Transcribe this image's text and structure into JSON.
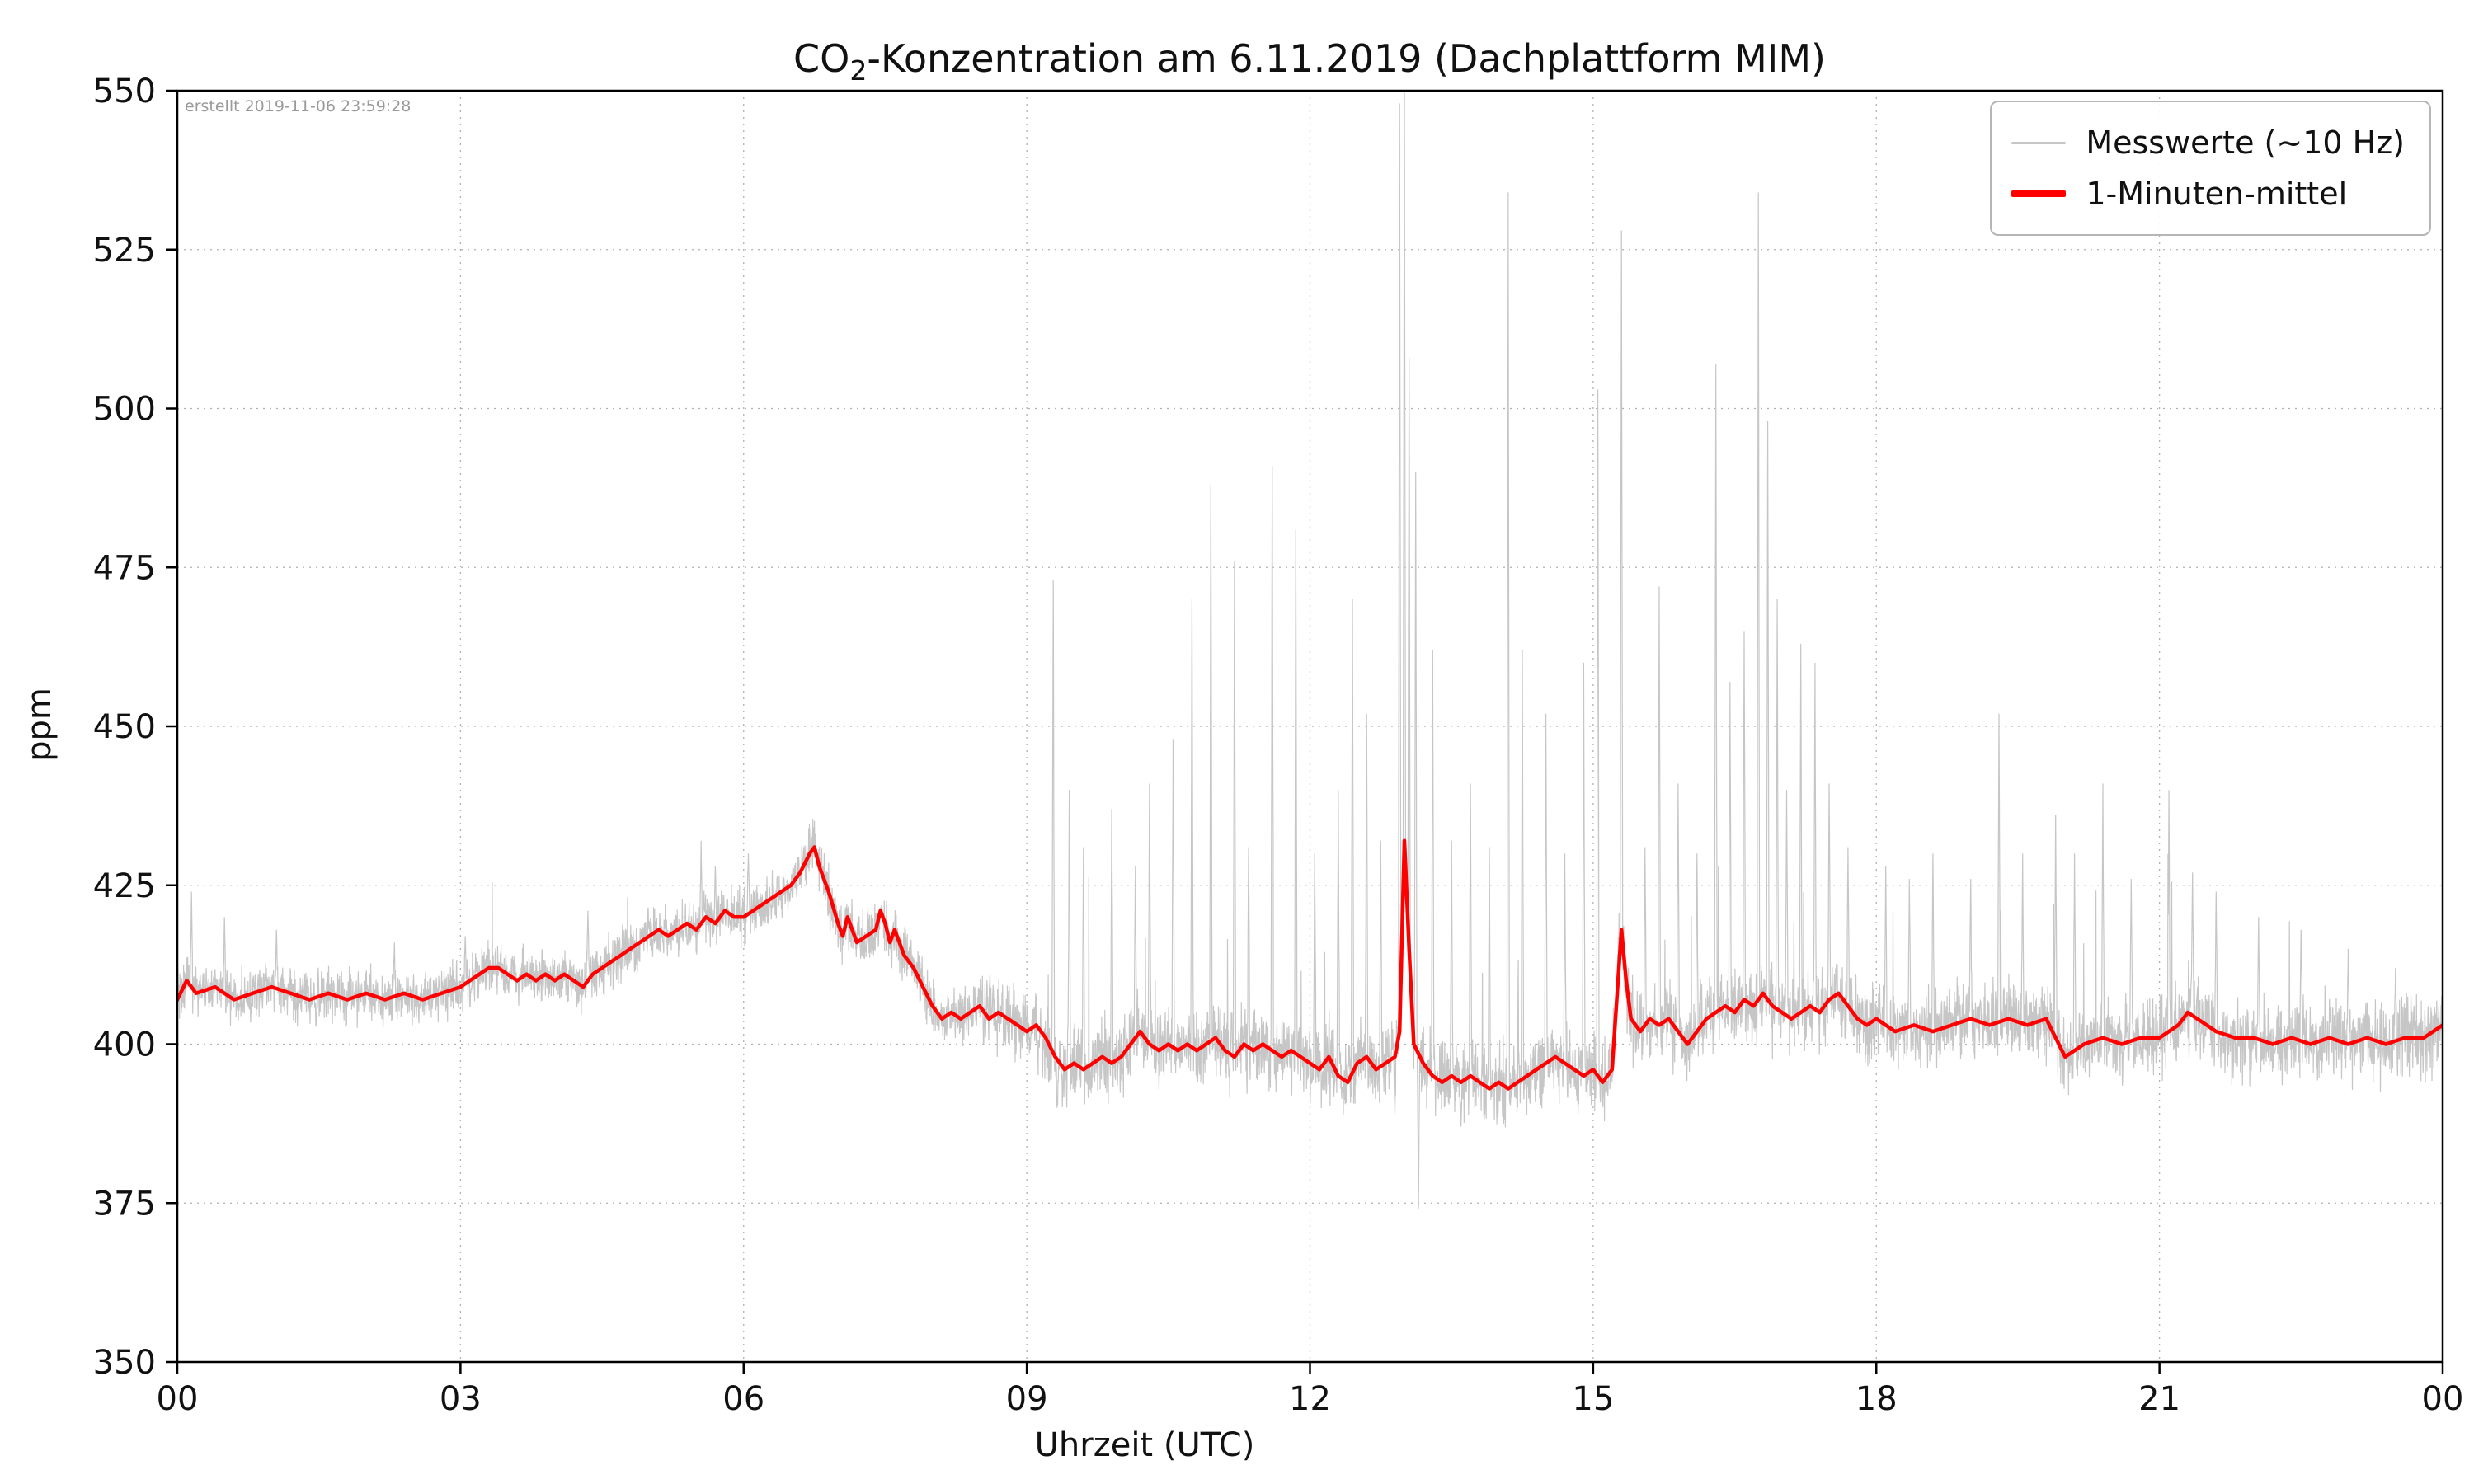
{
  "title": {
    "prefix": "CO",
    "sub": "2",
    "rest": "-Konzentration am 6.11.2019 (Dachplattform MIM)"
  },
  "annotation": {
    "created_text": "erstellt 2019-11-06 23:59:28"
  },
  "chart_data": {
    "type": "line",
    "title": "CO₂-Konzentration am 6.11.2019 (Dachplattform MIM)",
    "xlabel": "Uhrzeit (UTC)",
    "ylabel": "ppm",
    "xlim": [
      0,
      24
    ],
    "ylim": [
      350,
      550
    ],
    "grid": "dotted",
    "legend_position": "upper right",
    "x_ticks": [
      0,
      3,
      6,
      9,
      12,
      15,
      18,
      21,
      24
    ],
    "x_tick_labels": [
      "00",
      "03",
      "06",
      "09",
      "12",
      "15",
      "18",
      "21",
      "00"
    ],
    "y_ticks": [
      350,
      375,
      400,
      425,
      450,
      475,
      500,
      525,
      550
    ],
    "y_tick_labels": [
      "350",
      "375",
      "400",
      "425",
      "450",
      "475",
      "500",
      "525",
      "550"
    ],
    "colors": {
      "raw": "#c6c6c6",
      "mean": "#ff0000",
      "grid": "#b0b0b0",
      "axis": "#000000"
    },
    "series": [
      {
        "name": "Messwerte (~10 Hz)",
        "color": "#c6c6c6",
        "width": 1.2,
        "role": "raw"
      },
      {
        "name": "1-Minuten-mittel",
        "color": "#ff0000",
        "width": 4.5,
        "role": "mean",
        "points": [
          [
            0,
            407
          ],
          [
            0.1,
            410
          ],
          [
            0.2,
            408
          ],
          [
            0.4,
            409
          ],
          [
            0.6,
            407
          ],
          [
            0.8,
            408
          ],
          [
            1,
            409
          ],
          [
            1.2,
            408
          ],
          [
            1.4,
            407
          ],
          [
            1.6,
            408
          ],
          [
            1.8,
            407
          ],
          [
            2,
            408
          ],
          [
            2.2,
            407
          ],
          [
            2.4,
            408
          ],
          [
            2.6,
            407
          ],
          [
            2.8,
            408
          ],
          [
            3,
            409
          ],
          [
            3.1,
            410
          ],
          [
            3.2,
            411
          ],
          [
            3.3,
            412
          ],
          [
            3.4,
            412
          ],
          [
            3.5,
            411
          ],
          [
            3.6,
            410
          ],
          [
            3.7,
            411
          ],
          [
            3.8,
            410
          ],
          [
            3.9,
            411
          ],
          [
            4,
            410
          ],
          [
            4.1,
            411
          ],
          [
            4.2,
            410
          ],
          [
            4.3,
            409
          ],
          [
            4.4,
            411
          ],
          [
            4.5,
            412
          ],
          [
            4.6,
            413
          ],
          [
            4.7,
            414
          ],
          [
            4.8,
            415
          ],
          [
            4.9,
            416
          ],
          [
            5,
            417
          ],
          [
            5.1,
            418
          ],
          [
            5.2,
            417
          ],
          [
            5.3,
            418
          ],
          [
            5.4,
            419
          ],
          [
            5.5,
            418
          ],
          [
            5.6,
            420
          ],
          [
            5.7,
            419
          ],
          [
            5.8,
            421
          ],
          [
            5.9,
            420
          ],
          [
            6,
            420
          ],
          [
            6.1,
            421
          ],
          [
            6.2,
            422
          ],
          [
            6.3,
            423
          ],
          [
            6.4,
            424
          ],
          [
            6.5,
            425
          ],
          [
            6.6,
            427
          ],
          [
            6.7,
            430
          ],
          [
            6.75,
            431
          ],
          [
            6.8,
            428
          ],
          [
            6.9,
            424
          ],
          [
            7,
            419
          ],
          [
            7.05,
            417
          ],
          [
            7.1,
            420
          ],
          [
            7.2,
            416
          ],
          [
            7.3,
            417
          ],
          [
            7.4,
            418
          ],
          [
            7.45,
            421
          ],
          [
            7.5,
            419
          ],
          [
            7.55,
            416
          ],
          [
            7.6,
            418
          ],
          [
            7.7,
            414
          ],
          [
            7.8,
            412
          ],
          [
            7.9,
            409
          ],
          [
            8,
            406
          ],
          [
            8.1,
            404
          ],
          [
            8.2,
            405
          ],
          [
            8.3,
            404
          ],
          [
            8.4,
            405
          ],
          [
            8.5,
            406
          ],
          [
            8.6,
            404
          ],
          [
            8.7,
            405
          ],
          [
            8.8,
            404
          ],
          [
            8.9,
            403
          ],
          [
            9,
            402
          ],
          [
            9.1,
            403
          ],
          [
            9.2,
            401
          ],
          [
            9.3,
            398
          ],
          [
            9.4,
            396
          ],
          [
            9.5,
            397
          ],
          [
            9.6,
            396
          ],
          [
            9.7,
            397
          ],
          [
            9.8,
            398
          ],
          [
            9.9,
            397
          ],
          [
            10,
            398
          ],
          [
            10.1,
            400
          ],
          [
            10.2,
            402
          ],
          [
            10.3,
            400
          ],
          [
            10.4,
            399
          ],
          [
            10.5,
            400
          ],
          [
            10.6,
            399
          ],
          [
            10.7,
            400
          ],
          [
            10.8,
            399
          ],
          [
            10.9,
            400
          ],
          [
            11,
            401
          ],
          [
            11.1,
            399
          ],
          [
            11.2,
            398
          ],
          [
            11.3,
            400
          ],
          [
            11.4,
            399
          ],
          [
            11.5,
            400
          ],
          [
            11.6,
            399
          ],
          [
            11.7,
            398
          ],
          [
            11.8,
            399
          ],
          [
            11.9,
            398
          ],
          [
            12,
            397
          ],
          [
            12.1,
            396
          ],
          [
            12.2,
            398
          ],
          [
            12.3,
            395
          ],
          [
            12.4,
            394
          ],
          [
            12.5,
            397
          ],
          [
            12.6,
            398
          ],
          [
            12.7,
            396
          ],
          [
            12.8,
            397
          ],
          [
            12.9,
            398
          ],
          [
            12.95,
            402
          ],
          [
            13,
            432
          ],
          [
            13.05,
            415
          ],
          [
            13.1,
            400
          ],
          [
            13.2,
            397
          ],
          [
            13.3,
            395
          ],
          [
            13.4,
            394
          ],
          [
            13.5,
            395
          ],
          [
            13.6,
            394
          ],
          [
            13.7,
            395
          ],
          [
            13.8,
            394
          ],
          [
            13.9,
            393
          ],
          [
            14,
            394
          ],
          [
            14.1,
            393
          ],
          [
            14.2,
            394
          ],
          [
            14.3,
            395
          ],
          [
            14.4,
            396
          ],
          [
            14.5,
            397
          ],
          [
            14.6,
            398
          ],
          [
            14.7,
            397
          ],
          [
            14.8,
            396
          ],
          [
            14.9,
            395
          ],
          [
            15,
            396
          ],
          [
            15.1,
            394
          ],
          [
            15.2,
            396
          ],
          [
            15.3,
            418
          ],
          [
            15.35,
            410
          ],
          [
            15.4,
            404
          ],
          [
            15.5,
            402
          ],
          [
            15.6,
            404
          ],
          [
            15.7,
            403
          ],
          [
            15.8,
            404
          ],
          [
            15.9,
            402
          ],
          [
            16,
            400
          ],
          [
            16.1,
            402
          ],
          [
            16.2,
            404
          ],
          [
            16.3,
            405
          ],
          [
            16.4,
            406
          ],
          [
            16.5,
            405
          ],
          [
            16.6,
            407
          ],
          [
            16.7,
            406
          ],
          [
            16.8,
            408
          ],
          [
            16.9,
            406
          ],
          [
            17,
            405
          ],
          [
            17.1,
            404
          ],
          [
            17.2,
            405
          ],
          [
            17.3,
            406
          ],
          [
            17.4,
            405
          ],
          [
            17.5,
            407
          ],
          [
            17.6,
            408
          ],
          [
            17.7,
            406
          ],
          [
            17.8,
            404
          ],
          [
            17.9,
            403
          ],
          [
            18,
            404
          ],
          [
            18.2,
            402
          ],
          [
            18.4,
            403
          ],
          [
            18.6,
            402
          ],
          [
            18.8,
            403
          ],
          [
            19,
            404
          ],
          [
            19.2,
            403
          ],
          [
            19.4,
            404
          ],
          [
            19.6,
            403
          ],
          [
            19.8,
            404
          ],
          [
            20,
            398
          ],
          [
            20.1,
            399
          ],
          [
            20.2,
            400
          ],
          [
            20.4,
            401
          ],
          [
            20.6,
            400
          ],
          [
            20.8,
            401
          ],
          [
            21,
            401
          ],
          [
            21.2,
            403
          ],
          [
            21.3,
            405
          ],
          [
            21.4,
            404
          ],
          [
            21.5,
            403
          ],
          [
            21.6,
            402
          ],
          [
            21.8,
            401
          ],
          [
            22,
            401
          ],
          [
            22.2,
            400
          ],
          [
            22.4,
            401
          ],
          [
            22.6,
            400
          ],
          [
            22.8,
            401
          ],
          [
            23,
            400
          ],
          [
            23.2,
            401
          ],
          [
            23.4,
            400
          ],
          [
            23.6,
            401
          ],
          [
            23.8,
            401
          ],
          [
            24,
            403
          ]
        ]
      }
    ],
    "raw_spikes_up": [
      [
        0.15,
        424
      ],
      [
        0.5,
        420
      ],
      [
        1.05,
        418
      ],
      [
        2.3,
        416
      ],
      [
        3.05,
        417
      ],
      [
        4.35,
        421
      ],
      [
        5.55,
        432
      ],
      [
        5.7,
        428
      ],
      [
        6.05,
        430
      ],
      [
        9.28,
        473
      ],
      [
        9.45,
        440
      ],
      [
        9.6,
        431
      ],
      [
        9.9,
        437
      ],
      [
        10.15,
        428
      ],
      [
        10.3,
        441
      ],
      [
        10.55,
        448
      ],
      [
        10.75,
        470
      ],
      [
        10.95,
        488
      ],
      [
        11.2,
        476
      ],
      [
        11.35,
        431
      ],
      [
        11.6,
        491
      ],
      [
        11.85,
        481
      ],
      [
        12.05,
        430
      ],
      [
        12.3,
        440
      ],
      [
        12.45,
        470
      ],
      [
        12.6,
        452
      ],
      [
        12.75,
        432
      ],
      [
        12.95,
        548
      ],
      [
        13,
        556
      ],
      [
        13.05,
        508
      ],
      [
        13.12,
        490
      ],
      [
        13.3,
        462
      ],
      [
        13.5,
        432
      ],
      [
        13.7,
        441
      ],
      [
        13.9,
        431
      ],
      [
        14.1,
        534
      ],
      [
        14.25,
        462
      ],
      [
        14.5,
        452
      ],
      [
        14.7,
        430
      ],
      [
        14.9,
        460
      ],
      [
        15.05,
        503
      ],
      [
        15.3,
        528
      ],
      [
        15.55,
        431
      ],
      [
        15.7,
        472
      ],
      [
        15.9,
        441
      ],
      [
        16.1,
        430
      ],
      [
        16.3,
        507
      ],
      [
        16.45,
        457
      ],
      [
        16.6,
        465
      ],
      [
        16.75,
        534
      ],
      [
        16.85,
        498
      ],
      [
        16.95,
        470
      ],
      [
        17.05,
        440
      ],
      [
        17.2,
        463
      ],
      [
        17.35,
        460
      ],
      [
        17.5,
        441
      ],
      [
        17.7,
        431
      ],
      [
        18.1,
        428
      ],
      [
        18.35,
        426
      ],
      [
        18.6,
        430
      ],
      [
        19,
        426
      ],
      [
        19.3,
        452
      ],
      [
        19.55,
        430
      ],
      [
        19.9,
        436
      ],
      [
        20.1,
        430
      ],
      [
        20.4,
        441
      ],
      [
        20.7,
        426
      ],
      [
        21.1,
        440
      ],
      [
        21.35,
        427
      ],
      [
        21.6,
        424
      ],
      [
        22.05,
        420
      ],
      [
        22.5,
        418
      ],
      [
        23,
        415
      ],
      [
        23.5,
        412
      ]
    ],
    "raw_spikes_down": [
      [
        9.32,
        390
      ],
      [
        12.9,
        389
      ],
      [
        13.15,
        374
      ],
      [
        13.6,
        387
      ]
    ],
    "raw_noise_ppm": 3
  }
}
